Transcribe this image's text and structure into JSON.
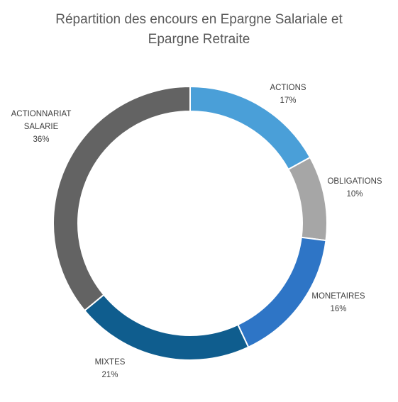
{
  "chart_data": {
    "type": "pie",
    "variant": "donut",
    "title_lines": [
      "Répartition des encours en Epargne Salariale et",
      "Epargne Retraite"
    ],
    "legend": "none",
    "slices": [
      {
        "label_lines": [
          "ACTIONS"
        ],
        "value": 17,
        "value_label": "17%",
        "color": "#4a9fd8"
      },
      {
        "label_lines": [
          "OBLIGATIONS"
        ],
        "value": 10,
        "value_label": "10%",
        "color": "#a6a6a6"
      },
      {
        "label_lines": [
          "MONETAIRES"
        ],
        "value": 16,
        "value_label": "16%",
        "color": "#2e75c6"
      },
      {
        "label_lines": [
          "MIXTES"
        ],
        "value": 21,
        "value_label": "21%",
        "color": "#0f5d8e"
      },
      {
        "label_lines": [
          "ACTIONNARIAT",
          "SALARIE"
        ],
        "value": 36,
        "value_label": "36%",
        "color": "#636363"
      }
    ]
  }
}
